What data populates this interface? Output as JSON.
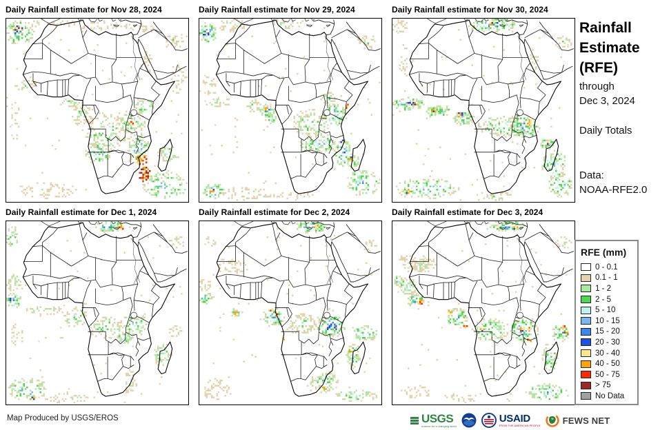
{
  "sidebar": {
    "title_line1": "Rainfall",
    "title_line2": "Estimate",
    "title_line3": "(RFE)",
    "through": "through",
    "through_date": "Dec 3, 2024",
    "totals": "Daily Totals",
    "data_label": "Data:",
    "data_source": "NOAA-RFE2.0"
  },
  "legend": {
    "title": "RFE (mm)",
    "entries": [
      {
        "label": "0 - 0.1",
        "color": "#ffffff"
      },
      {
        "label": "0.1 - 1",
        "color": "#e6d3ae"
      },
      {
        "label": "1 - 2",
        "color": "#aaeaa0"
      },
      {
        "label": "2 - 5",
        "color": "#4cd94c"
      },
      {
        "label": "5 - 10",
        "color": "#c2f0ee"
      },
      {
        "label": "10 - 15",
        "color": "#7ab6f0"
      },
      {
        "label": "15 - 20",
        "color": "#3a88ee"
      },
      {
        "label": "20 - 30",
        "color": "#1c50e8"
      },
      {
        "label": "30 - 40",
        "color": "#fbe78c"
      },
      {
        "label": "40 - 50",
        "color": "#ffa400"
      },
      {
        "label": "50 - 75",
        "color": "#fe2900"
      },
      {
        "label": "> 75",
        "color": "#9e2727"
      },
      {
        "label": "No Data",
        "color": "#a0a0a0"
      }
    ]
  },
  "footer": {
    "credit": "Map Produced by USGS/EROS",
    "usgs_label": "USGS",
    "usgs_tagline": "science for a changing world",
    "usaid_label": "USAID",
    "usaid_tagline": "FROM THE AMERICAN PEOPLE",
    "fews_label": "FEWS NET"
  },
  "rain_palette": [
    "#e6d3ae",
    "#aaeaa0",
    "#4cd94c",
    "#c2f0ee",
    "#7ab6f0",
    "#3a88ee",
    "#1c50e8",
    "#fbe78c",
    "#ffa400",
    "#fe2900",
    "#9e2727"
  ],
  "panels": [
    {
      "title": "Daily Rainfall estimate for Nov 28, 2024",
      "clusters": [
        [
          18,
          20,
          22,
          18,
          80,
          6
        ],
        [
          16,
          14,
          7,
          6,
          20,
          9
        ],
        [
          70,
          6,
          40,
          6,
          30,
          2
        ],
        [
          150,
          10,
          40,
          7,
          35,
          2
        ],
        [
          205,
          14,
          18,
          6,
          25,
          2
        ],
        [
          252,
          30,
          16,
          12,
          30,
          3
        ],
        [
          255,
          88,
          12,
          22,
          30,
          2
        ],
        [
          210,
          62,
          7,
          18,
          20,
          2
        ],
        [
          28,
          97,
          16,
          9,
          25,
          3
        ],
        [
          12,
          150,
          9,
          28,
          25,
          1
        ],
        [
          95,
          122,
          12,
          7,
          25,
          3
        ],
        [
          112,
          138,
          16,
          16,
          55,
          3
        ],
        [
          150,
          165,
          38,
          28,
          130,
          4
        ],
        [
          135,
          196,
          20,
          16,
          70,
          6
        ],
        [
          185,
          150,
          24,
          18,
          75,
          4
        ],
        [
          205,
          127,
          14,
          11,
          35,
          5
        ],
        [
          186,
          152,
          3,
          3,
          7,
          10
        ],
        [
          196,
          190,
          16,
          22,
          85,
          6
        ],
        [
          200,
          206,
          8,
          8,
          30,
          10
        ],
        [
          205,
          227,
          8,
          11,
          40,
          11
        ],
        [
          240,
          196,
          16,
          13,
          45,
          4
        ],
        [
          235,
          244,
          33,
          20,
          110,
          6
        ],
        [
          60,
          251,
          50,
          11,
          65,
          2
        ],
        [
          135,
          134,
          140,
          140,
          70,
          1
        ]
      ]
    },
    {
      "title": "Daily Rainfall estimate for Nov 29, 2024",
      "clusters": [
        [
          12,
          20,
          13,
          15,
          55,
          7
        ],
        [
          9,
          22,
          4,
          4,
          10,
          9
        ],
        [
          48,
          8,
          22,
          9,
          45,
          3
        ],
        [
          130,
          6,
          25,
          7,
          30,
          3
        ],
        [
          250,
          32,
          15,
          10,
          28,
          3
        ],
        [
          25,
          122,
          20,
          7,
          30,
          3
        ],
        [
          80,
          128,
          11,
          8,
          28,
          4
        ],
        [
          100,
          134,
          11,
          10,
          40,
          7
        ],
        [
          97,
          132,
          3,
          3,
          7,
          10
        ],
        [
          105,
          146,
          9,
          9,
          30,
          5
        ],
        [
          165,
          152,
          28,
          21,
          100,
          4
        ],
        [
          200,
          140,
          19,
          17,
          75,
          6
        ],
        [
          218,
          127,
          3,
          3,
          6,
          10
        ],
        [
          190,
          116,
          11,
          9,
          25,
          4
        ],
        [
          175,
          182,
          26,
          13,
          85,
          6
        ],
        [
          213,
          196,
          13,
          19,
          65,
          7
        ],
        [
          212,
          179,
          3,
          4,
          8,
          9
        ],
        [
          228,
          207,
          9,
          11,
          35,
          6
        ],
        [
          225,
          205,
          3,
          3,
          7,
          9
        ],
        [
          243,
          240,
          25,
          19,
          90,
          6
        ],
        [
          20,
          252,
          15,
          11,
          45,
          7
        ],
        [
          17,
          252,
          4,
          3,
          9,
          9
        ],
        [
          70,
          256,
          42,
          9,
          55,
          3
        ],
        [
          15,
          95,
          11,
          16,
          25,
          2
        ],
        [
          140,
          258,
          28,
          7,
          25,
          2
        ],
        [
          135,
          134,
          140,
          140,
          70,
          1
        ]
      ]
    },
    {
      "title": "Daily Rainfall estimate for Nov 30, 2024",
      "clusters": [
        [
          148,
          8,
          36,
          9,
          100,
          7
        ],
        [
          150,
          5,
          6,
          4,
          12,
          9
        ],
        [
          10,
          10,
          11,
          11,
          30,
          3
        ],
        [
          22,
          124,
          24,
          9,
          70,
          7
        ],
        [
          25,
          124,
          9,
          3,
          12,
          9
        ],
        [
          68,
          135,
          20,
          8,
          55,
          6
        ],
        [
          60,
          133,
          5,
          3,
          7,
          9
        ],
        [
          105,
          145,
          16,
          11,
          55,
          6
        ],
        [
          100,
          140,
          4,
          3,
          7,
          9
        ],
        [
          165,
          157,
          42,
          15,
          130,
          5
        ],
        [
          195,
          157,
          23,
          17,
          90,
          7
        ],
        [
          203,
          152,
          4,
          4,
          11,
          10
        ],
        [
          230,
          183,
          11,
          7,
          30,
          7
        ],
        [
          231,
          183,
          4,
          3,
          7,
          9
        ],
        [
          240,
          214,
          18,
          23,
          80,
          6
        ],
        [
          250,
          244,
          19,
          17,
          60,
          6
        ],
        [
          50,
          248,
          48,
          15,
          120,
          6
        ],
        [
          20,
          252,
          7,
          3,
          9,
          9
        ],
        [
          150,
          260,
          36,
          7,
          35,
          3
        ],
        [
          253,
          34,
          13,
          9,
          22,
          3
        ],
        [
          210,
          60,
          7,
          16,
          18,
          2
        ],
        [
          15,
          60,
          7,
          22,
          18,
          2
        ],
        [
          135,
          134,
          140,
          140,
          70,
          1
        ]
      ]
    },
    {
      "title": "Daily Rainfall estimate for Dec 1, 2024",
      "clusters": [
        [
          152,
          6,
          22,
          8,
          65,
          7
        ],
        [
          170,
          7,
          3,
          3,
          6,
          10
        ],
        [
          8,
          22,
          9,
          16,
          35,
          5
        ],
        [
          10,
          90,
          11,
          14,
          35,
          4
        ],
        [
          10,
          115,
          11,
          12,
          40,
          7
        ],
        [
          6,
          114,
          3,
          3,
          6,
          9
        ],
        [
          55,
          130,
          28,
          7,
          35,
          3
        ],
        [
          103,
          140,
          16,
          15,
          55,
          5
        ],
        [
          148,
          155,
          26,
          17,
          80,
          4
        ],
        [
          190,
          150,
          20,
          17,
          70,
          5
        ],
        [
          176,
          170,
          11,
          9,
          35,
          6
        ],
        [
          232,
          196,
          14,
          17,
          55,
          5
        ],
        [
          30,
          246,
          28,
          18,
          90,
          6
        ],
        [
          38,
          258,
          5,
          3,
          8,
          9
        ],
        [
          90,
          258,
          36,
          7,
          35,
          3
        ],
        [
          183,
          235,
          9,
          17,
          35,
          3
        ],
        [
          250,
          160,
          11,
          9,
          20,
          2
        ],
        [
          15,
          165,
          9,
          18,
          20,
          1
        ],
        [
          253,
          30,
          11,
          9,
          18,
          2
        ],
        [
          135,
          134,
          140,
          140,
          70,
          1
        ]
      ]
    },
    {
      "title": "Daily Rainfall estimate for Dec 2, 2024",
      "clusters": [
        [
          165,
          7,
          23,
          9,
          75,
          7
        ],
        [
          172,
          6,
          4,
          3,
          9,
          9
        ],
        [
          45,
          65,
          23,
          11,
          45,
          1
        ],
        [
          8,
          92,
          9,
          9,
          25,
          3
        ],
        [
          10,
          112,
          11,
          9,
          30,
          6
        ],
        [
          55,
          133,
          9,
          6,
          18,
          5
        ],
        [
          53,
          133,
          3,
          3,
          5,
          9
        ],
        [
          110,
          140,
          15,
          13,
          65,
          7
        ],
        [
          107,
          129,
          3,
          3,
          7,
          10
        ],
        [
          115,
          137,
          3,
          3,
          7,
          10
        ],
        [
          150,
          150,
          23,
          15,
          75,
          4
        ],
        [
          125,
          171,
          3,
          3,
          5,
          9
        ],
        [
          195,
          152,
          21,
          17,
          85,
          7
        ],
        [
          190,
          155,
          3,
          3,
          7,
          9
        ],
        [
          202,
          155,
          3,
          3,
          7,
          9
        ],
        [
          246,
          163,
          18,
          11,
          55,
          6
        ],
        [
          228,
          197,
          11,
          18,
          55,
          5
        ],
        [
          224,
          190,
          3,
          3,
          5,
          9
        ],
        [
          185,
          235,
          20,
          15,
          70,
          5
        ],
        [
          184,
          243,
          3,
          3,
          7,
          10
        ],
        [
          25,
          246,
          22,
          16,
          55,
          2
        ],
        [
          230,
          255,
          33,
          9,
          55,
          4
        ],
        [
          15,
          30,
          9,
          7,
          15,
          2
        ],
        [
          253,
          35,
          11,
          9,
          18,
          3
        ],
        [
          135,
          134,
          140,
          140,
          70,
          1
        ]
      ]
    },
    {
      "title": "Daily Rainfall estimate for Dec 3, 2024",
      "clusters": [
        [
          170,
          6,
          26,
          8,
          65,
          6
        ],
        [
          182,
          7,
          4,
          3,
          9,
          9
        ],
        [
          40,
          62,
          25,
          12,
          80,
          3
        ],
        [
          38,
          63,
          10,
          6,
          25,
          4
        ],
        [
          20,
          95,
          16,
          13,
          55,
          5
        ],
        [
          33,
          115,
          13,
          9,
          45,
          7
        ],
        [
          40,
          118,
          3,
          3,
          7,
          10
        ],
        [
          8,
          87,
          7,
          9,
          22,
          6
        ],
        [
          95,
          140,
          16,
          13,
          65,
          7
        ],
        [
          85,
          132,
          3,
          3,
          7,
          10
        ],
        [
          107,
          152,
          3,
          3,
          7,
          10
        ],
        [
          145,
          158,
          28,
          18,
          100,
          5
        ],
        [
          132,
          158,
          3,
          3,
          5,
          9
        ],
        [
          195,
          158,
          22,
          18,
          100,
          7
        ],
        [
          192,
          157,
          3,
          3,
          7,
          10
        ],
        [
          202,
          158,
          3,
          3,
          7,
          10
        ],
        [
          203,
          173,
          3,
          3,
          7,
          10
        ],
        [
          250,
          163,
          14,
          11,
          45,
          6
        ],
        [
          253,
          155,
          3,
          3,
          5,
          10
        ],
        [
          258,
          163,
          3,
          3,
          5,
          10
        ],
        [
          233,
          200,
          12,
          20,
          60,
          5
        ],
        [
          230,
          250,
          32,
          12,
          80,
          6
        ],
        [
          35,
          250,
          26,
          10,
          35,
          1
        ],
        [
          100,
          258,
          26,
          7,
          25,
          2
        ],
        [
          253,
          30,
          11,
          9,
          20,
          3
        ],
        [
          15,
          55,
          9,
          7,
          12,
          1
        ],
        [
          135,
          134,
          140,
          140,
          70,
          1
        ]
      ]
    }
  ]
}
